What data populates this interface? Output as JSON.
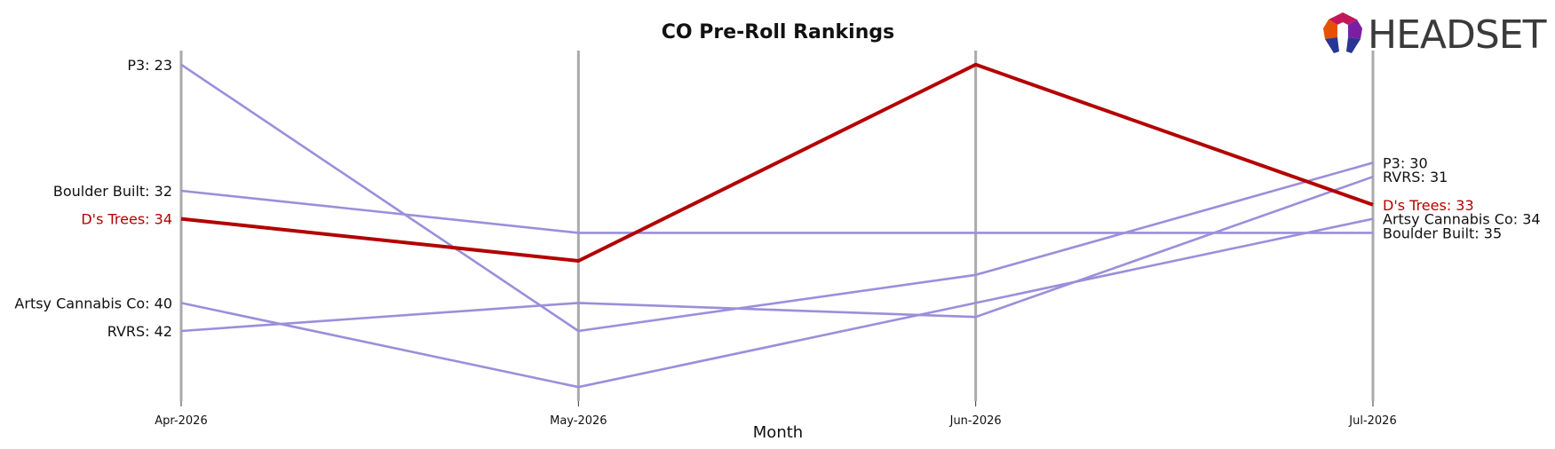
{
  "chart_data": {
    "type": "line",
    "title": "CO Pre-Roll Rankings",
    "xlabel": "Month",
    "ylabel": "",
    "x": [
      "Apr-2026",
      "May-2026",
      "Jun-2026",
      "Jul-2026"
    ],
    "y_inverted": true,
    "ylim": [
      47,
      22
    ],
    "grid": "vertical",
    "highlight_color": "#b30000",
    "series_color": "#9a8fdb",
    "series": [
      {
        "name": "P3",
        "values": [
          23,
          42,
          38,
          30
        ],
        "highlight": false
      },
      {
        "name": "Boulder Built",
        "values": [
          32,
          35,
          35,
          35
        ],
        "highlight": false
      },
      {
        "name": "D's Trees",
        "values": [
          34,
          37,
          23,
          33
        ],
        "highlight": true
      },
      {
        "name": "Artsy Cannabis Co",
        "values": [
          40,
          46,
          40,
          34
        ],
        "highlight": false
      },
      {
        "name": "RVRS",
        "values": [
          42,
          40,
          41,
          31
        ],
        "highlight": false
      }
    ],
    "left_labels": [
      {
        "series": "P3",
        "text": "P3: 23"
      },
      {
        "series": "Boulder Built",
        "text": "Boulder Built: 32"
      },
      {
        "series": "D's Trees",
        "text": "D's Trees: 34"
      },
      {
        "series": "Artsy Cannabis Co",
        "text": "Artsy Cannabis Co: 40"
      },
      {
        "series": "RVRS",
        "text": "RVRS: 42"
      }
    ],
    "right_labels": [
      {
        "series": "P3",
        "text": "P3: 30"
      },
      {
        "series": "RVRS",
        "text": "RVRS: 31"
      },
      {
        "series": "D's Trees",
        "text": "D's Trees: 33"
      },
      {
        "series": "Artsy Cannabis Co",
        "text": "Artsy Cannabis Co: 34"
      },
      {
        "series": "Boulder Built",
        "text": "Boulder Built: 35"
      }
    ]
  },
  "logo": {
    "text": "HEADSET",
    "colors": [
      "#c2185b",
      "#e65100",
      "#283593",
      "#7b1fa2"
    ]
  }
}
